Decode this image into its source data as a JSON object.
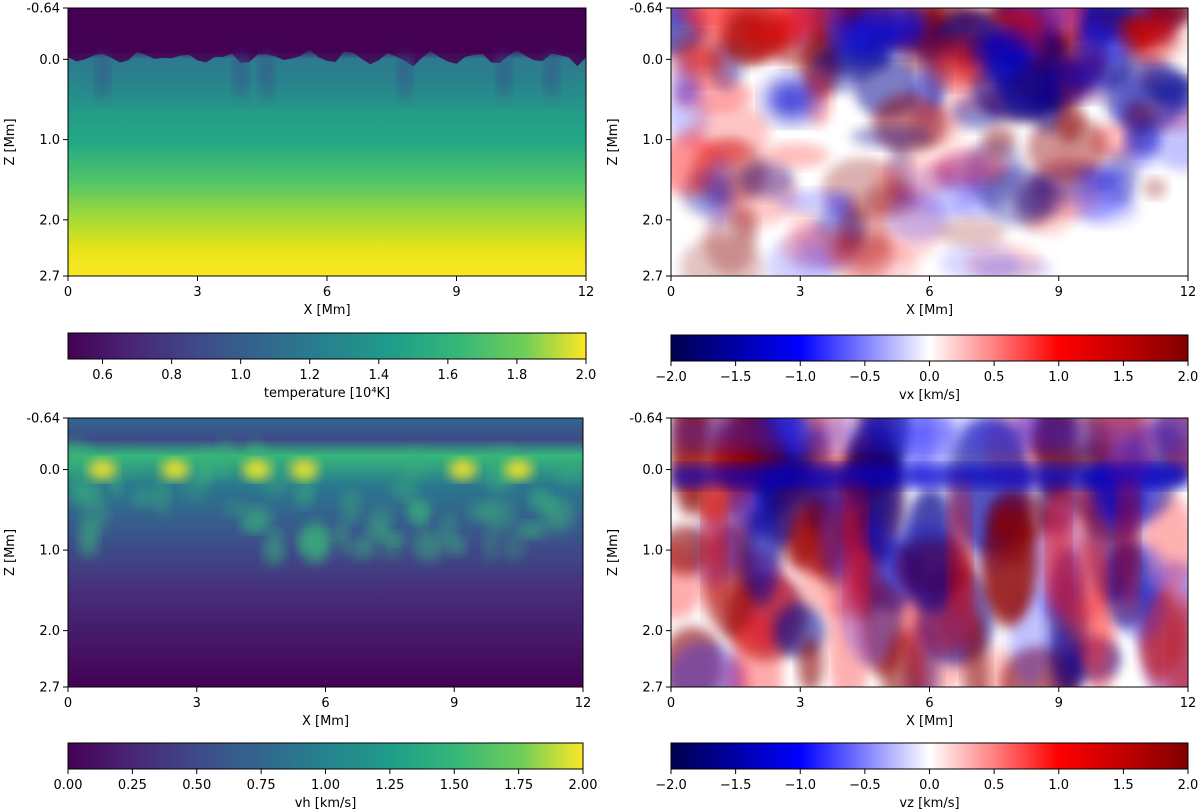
{
  "chart_data": [
    {
      "id": "temperature",
      "type": "heatmap",
      "title": "",
      "xlabel": "X [Mm]",
      "ylabel": "Z [Mm]",
      "xlim": [
        0,
        12
      ],
      "ylim": [
        -0.64,
        2.7
      ],
      "xticks": [
        "0",
        "3",
        "6",
        "9",
        "12"
      ],
      "xtick_values": [
        0,
        3,
        6,
        9,
        12
      ],
      "yticks": [
        "-0.64",
        "0.0",
        "1.0",
        "2.0",
        "2.7"
      ],
      "ytick_values": [
        -0.64,
        0.0,
        1.0,
        2.0,
        2.7
      ],
      "colormap": "viridis",
      "colorbar": {
        "label": "temperature [10⁴K]",
        "range": [
          0.5,
          2.0
        ],
        "ticks": [
          "0.6",
          "0.8",
          "1.0",
          "1.2",
          "1.4",
          "1.6",
          "1.8",
          "2.0"
        ],
        "tick_values": [
          0.6,
          0.8,
          1.0,
          1.2,
          1.4,
          1.6,
          1.8,
          2.0
        ]
      },
      "description_values": "cool (~0.5) above z≈-0.1 Mm, ~1.2-1.4 below surface, rising to ~2.0 at z≈2.7 Mm"
    },
    {
      "id": "vx",
      "type": "heatmap",
      "title": "",
      "xlabel": "X [Mm]",
      "ylabel": "Z [Mm]",
      "xlim": [
        0,
        12
      ],
      "ylim": [
        -0.64,
        2.7
      ],
      "xticks": [
        "0",
        "3",
        "6",
        "9",
        "12"
      ],
      "xtick_values": [
        0,
        3,
        6,
        9,
        12
      ],
      "yticks": [
        "-0.64",
        "0.0",
        "1.0",
        "2.0",
        "2.7"
      ],
      "ytick_values": [
        -0.64,
        0.0,
        1.0,
        2.0,
        2.7
      ],
      "colormap": "seismic",
      "colorbar": {
        "label": "vx [km/s]",
        "range": [
          -2.0,
          2.0
        ],
        "ticks": [
          "−2.0",
          "−1.5",
          "−1.0",
          "−0.5",
          "0.0",
          "0.5",
          "1.0",
          "1.5",
          "2.0"
        ],
        "tick_values": [
          -2.0,
          -1.5,
          -1.0,
          -0.5,
          0.0,
          0.5,
          1.0,
          1.5,
          2.0
        ]
      }
    },
    {
      "id": "vh",
      "type": "heatmap",
      "title": "",
      "xlabel": "X [Mm]",
      "ylabel": "Z [Mm]",
      "xlim": [
        0,
        12
      ],
      "ylim": [
        -0.64,
        2.7
      ],
      "xticks": [
        "0",
        "3",
        "6",
        "9",
        "12"
      ],
      "xtick_values": [
        0,
        3,
        6,
        9,
        12
      ],
      "yticks": [
        "-0.64",
        "0.0",
        "1.0",
        "2.0",
        "2.7"
      ],
      "ytick_values": [
        -0.64,
        0.0,
        1.0,
        2.0,
        2.7
      ],
      "colormap": "viridis",
      "colorbar": {
        "label": "vh [km/s]",
        "range": [
          0.0,
          2.0
        ],
        "ticks": [
          "0.00",
          "0.25",
          "0.50",
          "0.75",
          "1.00",
          "1.25",
          "1.50",
          "1.75",
          "2.00"
        ],
        "tick_values": [
          0.0,
          0.25,
          0.5,
          0.75,
          1.0,
          1.25,
          1.5,
          1.75,
          2.0
        ]
      },
      "hotspots_x": [
        0.8,
        2.5,
        4.4,
        5.5,
        9.2,
        10.5
      ]
    },
    {
      "id": "vz",
      "type": "heatmap",
      "title": "",
      "xlabel": "X [Mm]",
      "ylabel": "Z [Mm]",
      "xlim": [
        0,
        12
      ],
      "ylim": [
        -0.64,
        2.7
      ],
      "xticks": [
        "0",
        "3",
        "6",
        "9",
        "12"
      ],
      "xtick_values": [
        0,
        3,
        6,
        9,
        12
      ],
      "yticks": [
        "-0.64",
        "0.0",
        "1.0",
        "2.0",
        "2.7"
      ],
      "ytick_values": [
        -0.64,
        0.0,
        1.0,
        2.0,
        2.7
      ],
      "colormap": "seismic",
      "colorbar": {
        "label": "vz [km/s]",
        "range": [
          -2.0,
          2.0
        ],
        "ticks": [
          "−2.0",
          "−1.5",
          "−1.0",
          "−0.5",
          "0.0",
          "0.5",
          "1.0",
          "1.5",
          "2.0"
        ],
        "tick_values": [
          -2.0,
          -1.5,
          -1.0,
          -0.5,
          0.0,
          0.5,
          1.0,
          1.5,
          2.0
        ]
      },
      "downflow_lane_x": [
        1.0,
        4.3,
        6.7,
        9.0,
        10.6
      ]
    }
  ]
}
